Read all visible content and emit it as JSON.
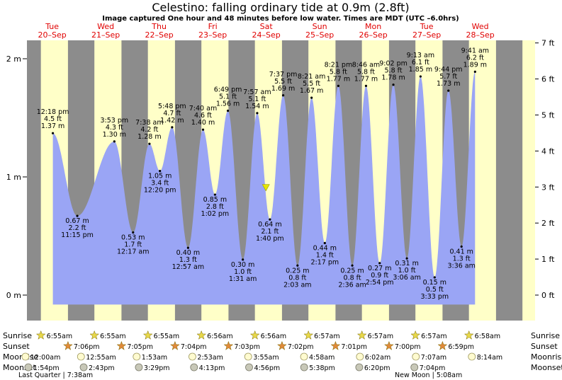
{
  "title": "Celestino: falling  ordinary tide at 0.9m (2.8ft)",
  "subtitle": "Image captured One hour and 48 minutes before low water. Times are MDT (UTC –6.0hrs)",
  "colors": {
    "night": "#8c8c8c",
    "day": "#ffffc8",
    "water": "#9aa5f5",
    "weekday_labels": "#e00000",
    "current_marker": "#e6e600"
  },
  "days": [
    {
      "weekday": "Tue",
      "date": "20–Sep"
    },
    {
      "weekday": "Wed",
      "date": "21–Sep"
    },
    {
      "weekday": "Thu",
      "date": "22–Sep"
    },
    {
      "weekday": "Fri",
      "date": "23–Sep"
    },
    {
      "weekday": "Sat",
      "date": "24–Sep"
    },
    {
      "weekday": "Sun",
      "date": "25–Sep"
    },
    {
      "weekday": "Mon",
      "date": "26–Sep"
    },
    {
      "weekday": "Tue",
      "date": "27–Sep"
    },
    {
      "weekday": "Wed",
      "date": "28–Sep"
    }
  ],
  "chart_data": {
    "type": "area",
    "title": "Celestino: falling  ordinary tide at 0.9m (2.8ft)",
    "x_unit": "hours from 00:00 Tue 20-Sep (MDT)",
    "y_left_unit": "m",
    "y_right_unit": "ft",
    "y_left_ticks": [
      "0 m",
      "1 m",
      "2 m"
    ],
    "y_right_ticks": [
      "0 ft",
      "1 ft",
      "2 ft",
      "3 ft",
      "4 ft",
      "5 ft",
      "6 ft",
      "7 ft"
    ],
    "ylim_m": [
      -0.1,
      2.15
    ],
    "current": {
      "label": "now",
      "height_m": 0.9,
      "date": "24-Sep",
      "time": "11:52 am"
    },
    "extremes": [
      {
        "type": "high",
        "time": "12:18 pm",
        "date": "20-Sep",
        "height_m": 1.37,
        "ft": "4.5 ft",
        "m_label": "1.37 m"
      },
      {
        "type": "low",
        "time": "11:15 pm",
        "date": "20-Sep",
        "height_m": 0.67,
        "ft": "2.2 ft",
        "m_label": "0.67 m"
      },
      {
        "type": "high",
        "time": "3:53 pm",
        "date": "21-Sep",
        "height_m": 1.3,
        "ft": "4.3 ft",
        "m_label": "1.30 m"
      },
      {
        "type": "low",
        "time": "12:17 am",
        "date": "22-Sep",
        "height_m": 0.53,
        "ft": "1.7 ft",
        "m_label": "0.53 m"
      },
      {
        "type": "high",
        "time": "7:38 am",
        "date": "22-Sep",
        "height_m": 1.28,
        "ft": "4.2 ft",
        "m_label": "1.28 m"
      },
      {
        "type": "low",
        "time": "12:20 pm",
        "date": "22-Sep",
        "height_m": 1.05,
        "ft": "3.4 ft",
        "m_label": "1.05 m"
      },
      {
        "type": "high",
        "time": "5:48 pm",
        "date": "22-Sep",
        "height_m": 1.42,
        "ft": "4.7 ft",
        "m_label": "1.42 m"
      },
      {
        "type": "low",
        "time": "12:57 am",
        "date": "23-Sep",
        "height_m": 0.4,
        "ft": "1.3 ft",
        "m_label": "0.40 m"
      },
      {
        "type": "high",
        "time": "7:40 am",
        "date": "23-Sep",
        "height_m": 1.4,
        "ft": "4.6 ft",
        "m_label": "1.40 m"
      },
      {
        "type": "low",
        "time": "1:02 pm",
        "date": "23-Sep",
        "height_m": 0.85,
        "ft": "2.8 ft",
        "m_label": "0.85 m"
      },
      {
        "type": "high",
        "time": "6:49 pm",
        "date": "23-Sep",
        "height_m": 1.56,
        "ft": "5.1 ft",
        "m_label": "1.56 m"
      },
      {
        "type": "low",
        "time": "1:31 am",
        "date": "24-Sep",
        "height_m": 0.3,
        "ft": "1.0 ft",
        "m_label": "0.30 m"
      },
      {
        "type": "high",
        "time": "7:57 am",
        "date": "24-Sep",
        "height_m": 1.54,
        "ft": "5.1 ft",
        "m_label": "1.54 m"
      },
      {
        "type": "low",
        "time": "1:40 pm",
        "date": "24-Sep",
        "height_m": 0.64,
        "ft": "2.1 ft",
        "m_label": "0.64 m"
      },
      {
        "type": "high",
        "time": "7:37 pm",
        "date": "24-Sep",
        "height_m": 1.69,
        "ft": "5.5 ft",
        "m_label": "1.69 m"
      },
      {
        "type": "low",
        "time": "2:03 am",
        "date": "25-Sep",
        "height_m": 0.25,
        "ft": "0.8 ft",
        "m_label": "0.25 m"
      },
      {
        "type": "high",
        "time": "8:21 am",
        "date": "25-Sep",
        "height_m": 1.67,
        "ft": "5.5 ft",
        "m_label": "1.67 m"
      },
      {
        "type": "low",
        "time": "2:17 pm",
        "date": "25-Sep",
        "height_m": 0.44,
        "ft": "1.4 ft",
        "m_label": "0.44 m"
      },
      {
        "type": "high",
        "time": "8:21 pm",
        "date": "25-Sep",
        "height_m": 1.77,
        "ft": "5.8 ft",
        "m_label": "1.77 m"
      },
      {
        "type": "low",
        "time": "2:36 am",
        "date": "26-Sep",
        "height_m": 0.25,
        "ft": "0.8 ft",
        "m_label": "0.25 m"
      },
      {
        "type": "high",
        "time": "8:46 am",
        "date": "26-Sep",
        "height_m": 1.77,
        "ft": "5.8 ft",
        "m_label": "1.77 m"
      },
      {
        "type": "low",
        "time": "2:54 pm",
        "date": "26-Sep",
        "height_m": 0.27,
        "ft": "0.9 ft",
        "m_label": "0.27 m"
      },
      {
        "type": "high",
        "time": "9:02 pm",
        "date": "26-Sep",
        "height_m": 1.78,
        "ft": "5.8 ft",
        "m_label": "1.78 m"
      },
      {
        "type": "low",
        "time": "3:06 am",
        "date": "27-Sep",
        "height_m": 0.31,
        "ft": "1.0 ft",
        "m_label": "0.31 m"
      },
      {
        "type": "high",
        "time": "9:13 am",
        "date": "27-Sep",
        "height_m": 1.85,
        "ft": "6.1 ft",
        "m_label": "1.85 m"
      },
      {
        "type": "low",
        "time": "3:33 pm",
        "date": "27-Sep",
        "height_m": 0.15,
        "ft": "0.5 ft",
        "m_label": "0.15 m"
      },
      {
        "type": "high",
        "time": "9:44 pm",
        "date": "27-Sep",
        "height_m": 1.73,
        "ft": "5.7 ft",
        "m_label": "1.73 m"
      },
      {
        "type": "low",
        "time": "3:36 am",
        "date": "28-Sep",
        "height_m": 0.41,
        "ft": "1.3 ft",
        "m_label": "0.41 m"
      },
      {
        "type": "high",
        "time": "9:41 am",
        "date": "28-Sep",
        "height_m": 1.89,
        "ft": "6.2 ft",
        "m_label": "1.89 m"
      }
    ]
  },
  "astro": {
    "row_labels": {
      "sunrise": "Sunrise",
      "sunset": "Sunset",
      "moonrise": "Moonrise",
      "moonset": "Moonset"
    },
    "sunrise": [
      "6:55am",
      "6:55am",
      "6:55am",
      "6:56am",
      "6:56am",
      "6:57am",
      "6:57am",
      "6:57am",
      "6:58am"
    ],
    "sunset": [
      "7:06pm",
      "7:05pm",
      "7:04pm",
      "7:03pm",
      "7:02pm",
      "7:01pm",
      "7:00pm",
      "6:59pm"
    ],
    "moonrise": [
      "12:00am",
      "12:55am",
      "1:53am",
      "2:53am",
      "3:55am",
      "4:58am",
      "6:02am",
      "7:07am",
      "8:14am"
    ],
    "moonset": [
      "1:54pm",
      "2:43pm",
      "3:29pm",
      "4:13pm",
      "4:56pm",
      "5:38pm",
      "6:20pm",
      "7:04pm"
    ],
    "moon_phases": [
      {
        "label": "Last Quarter | 7:38am"
      },
      {
        "label": "New Moon | 5:08am"
      }
    ]
  }
}
